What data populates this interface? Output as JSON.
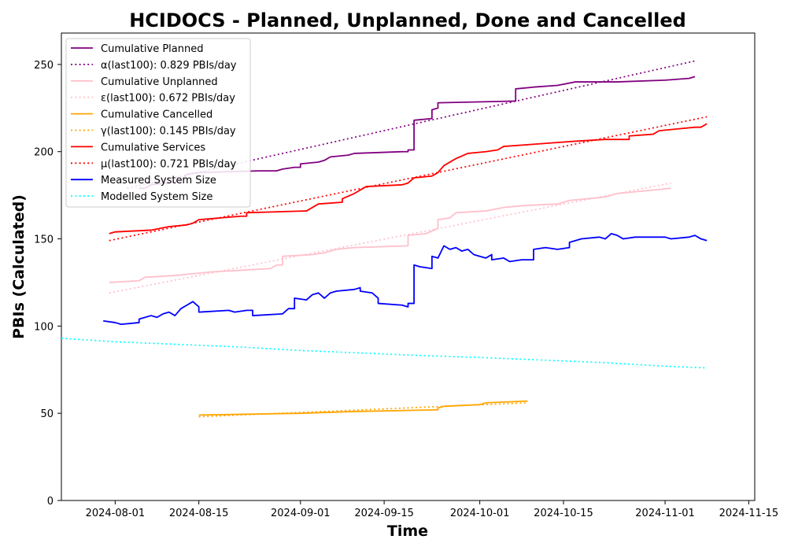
{
  "chart_data": {
    "type": "line",
    "title": "HCIDOCS - Planned, Unplanned, Done  and Cancelled",
    "xlabel": "Time",
    "ylabel": "PBIs (Calculated)",
    "x_type": "date",
    "xlim": [
      "2024-07-23",
      "2024-11-16"
    ],
    "ylim": [
      0,
      268
    ],
    "x_ticks": [
      "2024-08-01",
      "2024-08-15",
      "2024-09-01",
      "2024-09-15",
      "2024-10-01",
      "2024-10-15",
      "2024-11-01",
      "2024-11-15"
    ],
    "y_ticks": [
      0,
      50,
      100,
      150,
      200,
      250
    ],
    "grid": false,
    "legend_position": "upper-left",
    "series": [
      {
        "name": "Cumulative Planned",
        "color": "#800080",
        "style": "solid",
        "points": [
          [
            "2024-08-05",
            179
          ],
          [
            "2024-08-06",
            179
          ],
          [
            "2024-08-07",
            181
          ],
          [
            "2024-08-12",
            183
          ],
          [
            "2024-08-13",
            187
          ],
          [
            "2024-08-15",
            188
          ],
          [
            "2024-08-25",
            189
          ],
          [
            "2024-08-28",
            189
          ],
          [
            "2024-08-29",
            190
          ],
          [
            "2024-08-31",
            191
          ],
          [
            "2024-09-01",
            191
          ],
          [
            "2024-09-01",
            193
          ],
          [
            "2024-09-04",
            194
          ],
          [
            "2024-09-05",
            195
          ],
          [
            "2024-09-06",
            197
          ],
          [
            "2024-09-09",
            198
          ],
          [
            "2024-09-10",
            199
          ],
          [
            "2024-09-18",
            200
          ],
          [
            "2024-09-19",
            200
          ],
          [
            "2024-09-19",
            201
          ],
          [
            "2024-09-20",
            201
          ],
          [
            "2024-09-20",
            218
          ],
          [
            "2024-09-23",
            219
          ],
          [
            "2024-09-23",
            224
          ],
          [
            "2024-09-24",
            225
          ],
          [
            "2024-09-24",
            228
          ],
          [
            "2024-10-07",
            229
          ],
          [
            "2024-10-07",
            236
          ],
          [
            "2024-10-10",
            237
          ],
          [
            "2024-10-14",
            238
          ],
          [
            "2024-10-17",
            240
          ],
          [
            "2024-10-24",
            240
          ],
          [
            "2024-11-01",
            241
          ],
          [
            "2024-11-05",
            242
          ],
          [
            "2024-11-06",
            243
          ]
        ]
      },
      {
        "name": "α(last100): 0.829 PBIs/day",
        "color": "#800080",
        "style": "dotted",
        "points": [
          [
            "2024-08-03",
            179
          ],
          [
            "2024-11-06",
            252
          ]
        ]
      },
      {
        "name": "Cumulative Unplanned",
        "color": "#ffc0cb",
        "style": "solid",
        "points": [
          [
            "2024-07-31",
            125
          ],
          [
            "2024-08-05",
            126
          ],
          [
            "2024-08-06",
            128
          ],
          [
            "2024-08-11",
            129
          ],
          [
            "2024-08-14",
            130
          ],
          [
            "2024-08-17",
            131
          ],
          [
            "2024-08-22",
            132
          ],
          [
            "2024-08-27",
            133
          ],
          [
            "2024-08-28",
            135
          ],
          [
            "2024-08-29",
            135
          ],
          [
            "2024-08-29",
            140
          ],
          [
            "2024-09-03",
            141
          ],
          [
            "2024-09-05",
            142
          ],
          [
            "2024-09-07",
            144
          ],
          [
            "2024-09-10",
            145
          ],
          [
            "2024-09-19",
            146
          ],
          [
            "2024-09-19",
            152
          ],
          [
            "2024-09-22",
            153
          ],
          [
            "2024-09-24",
            156
          ],
          [
            "2024-09-24",
            161
          ],
          [
            "2024-09-26",
            162
          ],
          [
            "2024-09-27",
            165
          ],
          [
            "2024-10-02",
            166
          ],
          [
            "2024-10-05",
            168
          ],
          [
            "2024-10-08",
            169
          ],
          [
            "2024-10-14",
            170
          ],
          [
            "2024-10-16",
            172
          ],
          [
            "2024-10-22",
            174
          ],
          [
            "2024-10-24",
            176
          ],
          [
            "2024-10-30",
            178
          ],
          [
            "2024-11-02",
            179
          ]
        ]
      },
      {
        "name": "ε(last100): 0.672 PBIs/day",
        "color": "#ffc0cb",
        "style": "dotted",
        "points": [
          [
            "2024-07-31",
            119
          ],
          [
            "2024-11-02",
            182
          ]
        ]
      },
      {
        "name": "Cumulative Cancelled",
        "color": "#ffa500",
        "style": "solid",
        "points": [
          [
            "2024-08-15",
            49
          ],
          [
            "2024-09-01",
            50
          ],
          [
            "2024-09-10",
            51
          ],
          [
            "2024-09-24",
            52
          ],
          [
            "2024-09-24",
            53
          ],
          [
            "2024-09-25",
            54
          ],
          [
            "2024-10-01",
            55
          ],
          [
            "2024-10-02",
            56
          ],
          [
            "2024-10-09",
            57
          ]
        ]
      },
      {
        "name": "γ(last100): 0.145 PBIs/day",
        "color": "#ffa500",
        "style": "dotted",
        "points": [
          [
            "2024-08-15",
            48
          ],
          [
            "2024-10-09",
            56
          ]
        ]
      },
      {
        "name": "Cumulative Services",
        "color": "#ff0000",
        "style": "solid",
        "points": [
          [
            "2024-07-31",
            153
          ],
          [
            "2024-08-01",
            154
          ],
          [
            "2024-08-07",
            155
          ],
          [
            "2024-08-10",
            157
          ],
          [
            "2024-08-13",
            158
          ],
          [
            "2024-08-14",
            159
          ],
          [
            "2024-08-15",
            161
          ],
          [
            "2024-08-22",
            163
          ],
          [
            "2024-08-23",
            163
          ],
          [
            "2024-08-23",
            165
          ],
          [
            "2024-09-02",
            166
          ],
          [
            "2024-09-04",
            170
          ],
          [
            "2024-09-08",
            171
          ],
          [
            "2024-09-08",
            173
          ],
          [
            "2024-09-10",
            176
          ],
          [
            "2024-09-12",
            180
          ],
          [
            "2024-09-18",
            181
          ],
          [
            "2024-09-19",
            182
          ],
          [
            "2024-09-20",
            185
          ],
          [
            "2024-09-23",
            186
          ],
          [
            "2024-09-24",
            188
          ],
          [
            "2024-09-25",
            192
          ],
          [
            "2024-09-27",
            196
          ],
          [
            "2024-09-29",
            199
          ],
          [
            "2024-10-02",
            200
          ],
          [
            "2024-10-04",
            201
          ],
          [
            "2024-10-05",
            203
          ],
          [
            "2024-10-09",
            204
          ],
          [
            "2024-10-13",
            205
          ],
          [
            "2024-10-17",
            206
          ],
          [
            "2024-10-22",
            207
          ],
          [
            "2024-10-26",
            207
          ],
          [
            "2024-10-26",
            209
          ],
          [
            "2024-10-30",
            210
          ],
          [
            "2024-10-31",
            212
          ],
          [
            "2024-11-03",
            213
          ],
          [
            "2024-11-06",
            214
          ],
          [
            "2024-11-07",
            214
          ],
          [
            "2024-11-08",
            216
          ]
        ]
      },
      {
        "name": "μ(last100): 0.721 PBIs/day",
        "color": "#ff0000",
        "style": "dotted",
        "points": [
          [
            "2024-07-31",
            149
          ],
          [
            "2024-11-08",
            220
          ]
        ]
      },
      {
        "name": "Measured System Size",
        "color": "#0000ff",
        "style": "solid",
        "points": [
          [
            "2024-07-30",
            103
          ],
          [
            "2024-08-01",
            102
          ],
          [
            "2024-08-02",
            101
          ],
          [
            "2024-08-05",
            102
          ],
          [
            "2024-08-05",
            104
          ],
          [
            "2024-08-07",
            106
          ],
          [
            "2024-08-08",
            105
          ],
          [
            "2024-08-09",
            107
          ],
          [
            "2024-08-10",
            108
          ],
          [
            "2024-08-11",
            106
          ],
          [
            "2024-08-12",
            110
          ],
          [
            "2024-08-13",
            112
          ],
          [
            "2024-08-14",
            114
          ],
          [
            "2024-08-15",
            111
          ],
          [
            "2024-08-15",
            108
          ],
          [
            "2024-08-20",
            109
          ],
          [
            "2024-08-21",
            108
          ],
          [
            "2024-08-23",
            109
          ],
          [
            "2024-08-24",
            109
          ],
          [
            "2024-08-24",
            106
          ],
          [
            "2024-08-29",
            107
          ],
          [
            "2024-08-30",
            110
          ],
          [
            "2024-08-31",
            110
          ],
          [
            "2024-08-31",
            116
          ],
          [
            "2024-09-02",
            115
          ],
          [
            "2024-09-03",
            118
          ],
          [
            "2024-09-04",
            119
          ],
          [
            "2024-09-05",
            116
          ],
          [
            "2024-09-06",
            119
          ],
          [
            "2024-09-07",
            120
          ],
          [
            "2024-09-10",
            121
          ],
          [
            "2024-09-11",
            122
          ],
          [
            "2024-09-11",
            120
          ],
          [
            "2024-09-13",
            119
          ],
          [
            "2024-09-14",
            116
          ],
          [
            "2024-09-14",
            113
          ],
          [
            "2024-09-18",
            112
          ],
          [
            "2024-09-19",
            111
          ],
          [
            "2024-09-19",
            113
          ],
          [
            "2024-09-20",
            113
          ],
          [
            "2024-09-20",
            135
          ],
          [
            "2024-09-21",
            134
          ],
          [
            "2024-09-23",
            133
          ],
          [
            "2024-09-23",
            140
          ],
          [
            "2024-09-24",
            139
          ],
          [
            "2024-09-25",
            146
          ],
          [
            "2024-09-26",
            144
          ],
          [
            "2024-09-27",
            145
          ],
          [
            "2024-09-28",
            143
          ],
          [
            "2024-09-29",
            144
          ],
          [
            "2024-09-30",
            141
          ],
          [
            "2024-10-01",
            140
          ],
          [
            "2024-10-02",
            139
          ],
          [
            "2024-10-03",
            141
          ],
          [
            "2024-10-03",
            138
          ],
          [
            "2024-10-05",
            139
          ],
          [
            "2024-10-06",
            137
          ],
          [
            "2024-10-08",
            138
          ],
          [
            "2024-10-10",
            138
          ],
          [
            "2024-10-10",
            144
          ],
          [
            "2024-10-12",
            145
          ],
          [
            "2024-10-14",
            144
          ],
          [
            "2024-10-16",
            145
          ],
          [
            "2024-10-16",
            148
          ],
          [
            "2024-10-18",
            150
          ],
          [
            "2024-10-21",
            151
          ],
          [
            "2024-10-22",
            150
          ],
          [
            "2024-10-23",
            153
          ],
          [
            "2024-10-24",
            152
          ],
          [
            "2024-10-25",
            150
          ],
          [
            "2024-10-27",
            151
          ],
          [
            "2024-11-01",
            151
          ],
          [
            "2024-11-02",
            150
          ],
          [
            "2024-11-05",
            151
          ],
          [
            "2024-11-06",
            152
          ],
          [
            "2024-11-07",
            150
          ],
          [
            "2024-11-08",
            149
          ]
        ]
      },
      {
        "name": "Modelled System Size",
        "color": "#00ffff",
        "style": "dotted",
        "points": [
          [
            "2024-07-23",
            93
          ],
          [
            "2024-08-01",
            91
          ],
          [
            "2024-08-08",
            90
          ],
          [
            "2024-08-15",
            89
          ],
          [
            "2024-08-22",
            88
          ],
          [
            "2024-09-01",
            86
          ],
          [
            "2024-09-08",
            85
          ],
          [
            "2024-09-15",
            84
          ],
          [
            "2024-09-22",
            83
          ],
          [
            "2024-10-01",
            82
          ],
          [
            "2024-10-08",
            81
          ],
          [
            "2024-10-15",
            80
          ],
          [
            "2024-10-22",
            79
          ],
          [
            "2024-11-01",
            77
          ],
          [
            "2024-11-08",
            76
          ]
        ]
      }
    ]
  }
}
